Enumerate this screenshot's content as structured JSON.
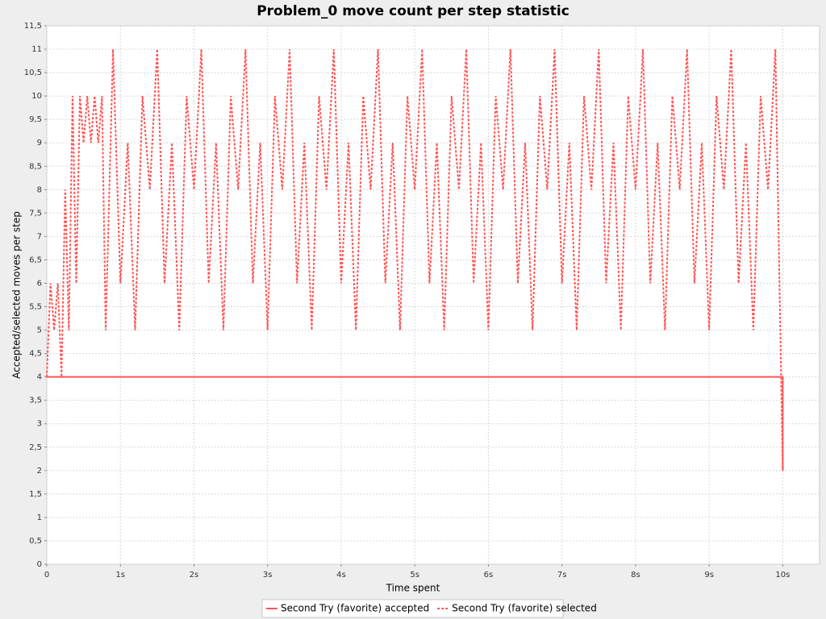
{
  "chart_data": {
    "type": "line",
    "title": "Problem_0 move count per step statistic",
    "x_label": "Time spent",
    "y_label": "Accepted/selected moves per step",
    "xlim": [
      0,
      10.5
    ],
    "ylim": [
      0,
      11.5
    ],
    "grid": true,
    "legend": "bottom",
    "xticks": [
      {
        "value": 0,
        "label": "0"
      },
      {
        "value": 1,
        "label": "1s"
      },
      {
        "value": 2,
        "label": "2s"
      },
      {
        "value": 3,
        "label": "3s"
      },
      {
        "value": 4,
        "label": "4s"
      },
      {
        "value": 5,
        "label": "5s"
      },
      {
        "value": 6,
        "label": "6s"
      },
      {
        "value": 7,
        "label": "7s"
      },
      {
        "value": 8,
        "label": "8s"
      },
      {
        "value": 9,
        "label": "9s"
      },
      {
        "value": 10,
        "label": "10s"
      }
    ],
    "yticks": [
      0,
      {
        "value": 0.5,
        "label": "0,5"
      },
      1,
      {
        "value": 1.5,
        "label": "1,5"
      },
      2,
      {
        "value": 2.5,
        "label": "2,5"
      },
      3,
      {
        "value": 3.5,
        "label": "3,5"
      },
      4,
      {
        "value": 4.5,
        "label": "4,5"
      },
      5,
      {
        "value": 5.5,
        "label": "5,5"
      },
      6,
      {
        "value": 6.5,
        "label": "6,5"
      },
      7,
      {
        "value": 7.5,
        "label": "7,5"
      },
      8,
      {
        "value": 8.5,
        "label": "8,5"
      },
      9,
      {
        "value": 9.5,
        "label": "9,5"
      },
      10,
      {
        "value": 10.5,
        "label": "10,5"
      },
      11,
      {
        "value": 11.5,
        "label": "11,5"
      }
    ],
    "series": [
      {
        "name": "Second Try (favorite) accepted",
        "color": "#ff5555",
        "dashed": false,
        "x": [
          0,
          10,
          10
        ],
        "values": [
          4,
          4,
          2
        ]
      },
      {
        "name": "Second Try (favorite) selected",
        "color": "#ff5555",
        "dashed": true,
        "x": [
          0,
          0.05,
          0.1,
          0.15,
          0.2,
          0.25,
          0.3,
          0.35,
          0.4,
          0.45,
          0.5,
          0.55,
          0.6,
          0.65,
          0.7,
          0.75,
          0.8,
          0.9,
          1,
          1.1,
          1.2,
          1.3,
          1.4,
          1.5,
          1.6,
          1.7,
          1.8,
          1.9,
          2,
          2.1,
          2.2,
          2.3,
          2.4,
          2.5,
          2.6,
          2.7,
          2.8,
          2.9,
          3,
          3.1,
          3.2,
          3.3,
          3.4,
          3.5,
          3.6,
          3.7,
          3.8,
          3.9,
          4,
          4.1,
          4.2,
          4.3,
          4.4,
          4.5,
          4.6,
          4.7,
          4.8,
          4.9,
          5,
          5.1,
          5.2,
          5.3,
          5.4,
          5.5,
          5.6,
          5.7,
          5.8,
          5.9,
          6,
          6.1,
          6.2,
          6.3,
          6.4,
          6.5,
          6.6,
          6.7,
          6.8,
          6.9,
          7,
          7.1,
          7.2,
          7.3,
          7.4,
          7.5,
          7.6,
          7.7,
          7.8,
          7.9,
          8,
          8.1,
          8.2,
          8.3,
          8.4,
          8.5,
          8.6,
          8.7,
          8.8,
          8.9,
          9,
          9.1,
          9.2,
          9.3,
          9.4,
          9.5,
          9.6,
          9.7,
          9.8,
          9.9,
          10
        ],
        "values": [
          4,
          6,
          5,
          6,
          4,
          8,
          5,
          10,
          6,
          10,
          9,
          10,
          9,
          10,
          9,
          10,
          5,
          11,
          6,
          9,
          5,
          10,
          8,
          11,
          6,
          9,
          5,
          10,
          8,
          11,
          6,
          9,
          5,
          10,
          8,
          11,
          6,
          9,
          5,
          10,
          8,
          11,
          6,
          9,
          5,
          10,
          8,
          11,
          6,
          9,
          5,
          10,
          8,
          11,
          6,
          9,
          5,
          10,
          8,
          11,
          6,
          9,
          5,
          10,
          8,
          11,
          6,
          9,
          5,
          10,
          8,
          11,
          6,
          9,
          5,
          10,
          8,
          11,
          6,
          9,
          5,
          10,
          8,
          11,
          6,
          9,
          5,
          10,
          8,
          11,
          6,
          9,
          5,
          10,
          8,
          11,
          6,
          9,
          5,
          10,
          8,
          11,
          6,
          9,
          5,
          10,
          8,
          11,
          2
        ]
      }
    ]
  }
}
